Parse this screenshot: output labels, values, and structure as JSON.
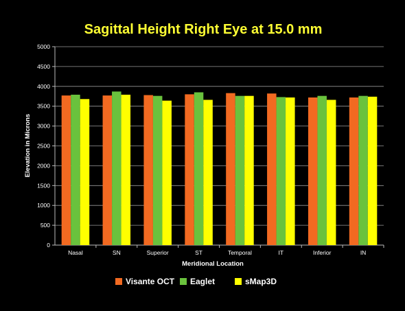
{
  "chart_data": {
    "type": "bar",
    "title": "Sagittal Height Right Eye at 15.0 mm",
    "xlabel": "Meridional Location",
    "ylabel": "Elevation in Microns",
    "ylim": [
      0,
      5000
    ],
    "yticks": [
      0,
      500,
      1000,
      1500,
      2000,
      2500,
      3000,
      3500,
      4000,
      4500,
      5000
    ],
    "grid": true,
    "legend_position": "bottom",
    "background_color": "#000000",
    "title_color": "#ffff33",
    "categories": [
      "Nasal",
      "SN",
      "Superior",
      "ST",
      "Temporal",
      "IT",
      "Inferior",
      "IN"
    ],
    "series": [
      {
        "name": "Visante OCT",
        "color": "#f26a21",
        "values": [
          3770,
          3770,
          3780,
          3800,
          3830,
          3820,
          3720,
          3720
        ]
      },
      {
        "name": "Eaglet",
        "color": "#6ac23d",
        "values": [
          3790,
          3870,
          3760,
          3850,
          3760,
          3730,
          3760,
          3760
        ]
      },
      {
        "name": "sMap3D",
        "color": "#ffff00",
        "values": [
          3680,
          3790,
          3640,
          3660,
          3760,
          3720,
          3660,
          3740
        ]
      }
    ]
  }
}
